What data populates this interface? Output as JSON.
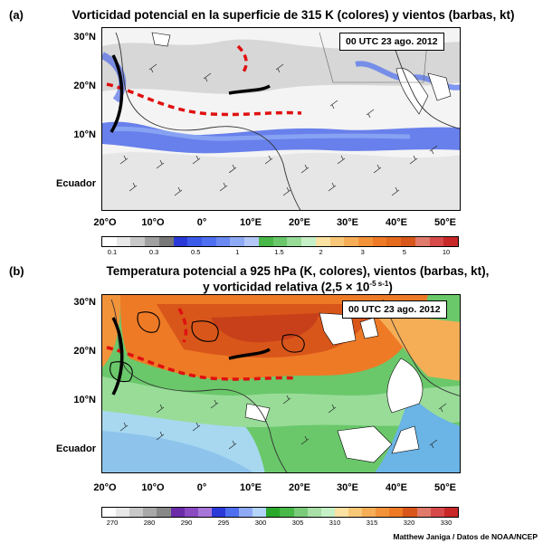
{
  "panel_a": {
    "tag": "(a)",
    "title": "Vorticidad potencial en la superficie de 315 K (colores) y vientos (barbas, kt)",
    "date": "00 UTC 23 ago. 2012",
    "y_labels": [
      "30°N",
      "20°N",
      "10°N",
      "Ecuador"
    ],
    "x_labels": [
      "20°O",
      "10°O",
      "0°",
      "10°E",
      "20°E",
      "30°E",
      "40°E",
      "50°E"
    ],
    "colorbar_ticks": [
      "0.1",
      "0.3",
      "0.5",
      "1",
      "1.5",
      "2",
      "3",
      "5",
      "10"
    ],
    "colorbar_colors": [
      "#ffffff",
      "#e8e8e8",
      "#c8c8c8",
      "#a0a0a0",
      "#787878",
      "#2a3ad8",
      "#3a5ae8",
      "#4d6ff0",
      "#6a8af2",
      "#8faaf5",
      "#b4c8f8",
      "#48b848",
      "#6ac86a",
      "#98dc98",
      "#c6f0c6",
      "#fbe1a2",
      "#f8c878",
      "#f5ae56",
      "#f2933a",
      "#ee7a26",
      "#e46a1e",
      "#d8561a",
      "#e07a6a",
      "#d64a4a",
      "#c82828"
    ]
  },
  "panel_b": {
    "tag": "(b)",
    "title_line1": "Temperatura potencial a 925 hPa (K, colores), vientos (barbas, kt),",
    "title_line2_prefix": "y vorticidad relativa (2,5 × 10",
    "title_line2_sup": "-5 s-1",
    "title_line2_suffix": ")",
    "date": "00 UTC 23 ago. 2012",
    "y_labels": [
      "30°N",
      "20°N",
      "10°N",
      "Ecuador"
    ],
    "x_labels": [
      "20°O",
      "10°O",
      "0°",
      "10°E",
      "20°E",
      "30°E",
      "40°E",
      "50°E"
    ],
    "colorbar_ticks": [
      "270",
      "280",
      "290",
      "295",
      "300",
      "305",
      "310",
      "315",
      "320",
      "330"
    ],
    "colorbar_colors": [
      "#ffffff",
      "#e8e8e8",
      "#c8c8c8",
      "#a8a8a8",
      "#888888",
      "#6c2ca8",
      "#8a4ac0",
      "#a876d8",
      "#2a3ad8",
      "#4d6ff0",
      "#8faaf5",
      "#b4d4f8",
      "#2aa82a",
      "#48b848",
      "#7acc7a",
      "#a8e0a8",
      "#c6f0c6",
      "#fbe1a2",
      "#f8c878",
      "#f5ae56",
      "#f2933a",
      "#ee7a26",
      "#d8561a",
      "#e07a6a",
      "#d64a4a",
      "#c82828"
    ]
  },
  "credit": "Matthew Janiga / Datos de NOAA/NCEP"
}
